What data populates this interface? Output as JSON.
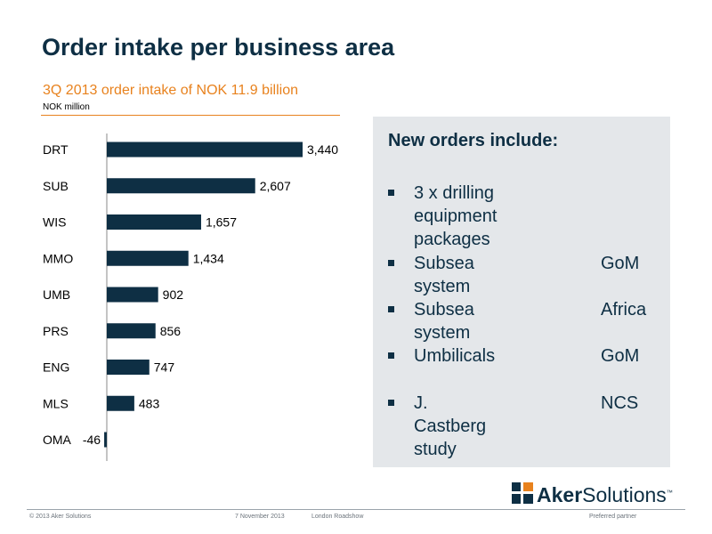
{
  "header": {
    "title": "Order intake per business area",
    "subtitle": "3Q 2013 order intake of NOK 11.9 billion",
    "unit": "NOK million"
  },
  "chart_data": {
    "type": "bar",
    "orientation": "horizontal",
    "categories": [
      "DRT",
      "SUB",
      "WIS",
      "MMO",
      "UMB",
      "PRS",
      "ENG",
      "MLS",
      "OMA"
    ],
    "values": [
      3440,
      2607,
      1657,
      1434,
      902,
      856,
      747,
      483,
      -46
    ],
    "value_labels": [
      "3,440",
      "2,607",
      "1,657",
      "1,434",
      "902",
      "856",
      "747",
      "483",
      "-46"
    ],
    "title": "",
    "xlabel": "",
    "ylabel": "",
    "grid": false,
    "bar_color": "#0e2f44"
  },
  "panel": {
    "title": "New orders include:",
    "items": [
      {
        "text_line1": "3 x drilling equipment",
        "text_line2": "packages",
        "region": ""
      },
      {
        "text_line1": "Subsea system",
        "text_line2": "",
        "region": "GoM"
      },
      {
        "text_line1": "Subsea system",
        "text_line2": "",
        "region": "Africa"
      },
      {
        "text_line1": "Umbilicals",
        "text_line2": "",
        "region": "GoM"
      },
      {
        "text_line1": "J. Castberg study",
        "text_line2": "",
        "region": "NCS"
      }
    ]
  },
  "logo": {
    "bold": "Aker",
    "regular": "Solutions",
    "tm": "™"
  },
  "footer": {
    "copyright": "© 2013 Aker Solutions",
    "date": "7 November 2013",
    "event": "London Roadshow",
    "tagline": "Preferred partner"
  },
  "colors": {
    "navy": "#0e2f44",
    "accent": "#e8821e",
    "panel_bg": "#e4e7ea"
  }
}
